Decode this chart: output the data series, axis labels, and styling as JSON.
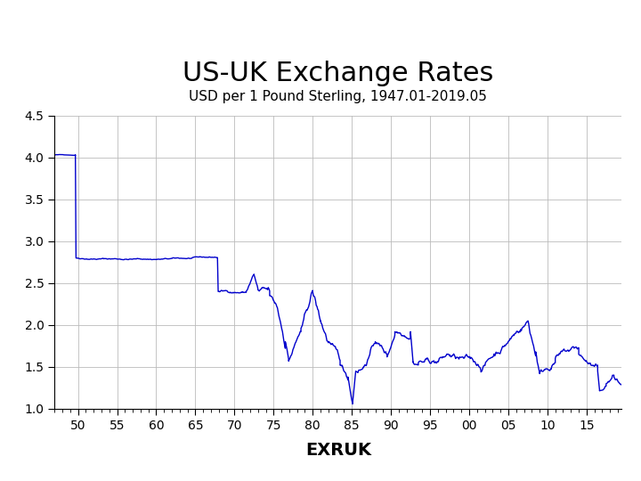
{
  "title": "US-UK Exchange Rates",
  "subtitle": "USD per 1 Pound Sterling, 1947.01-2019.05",
  "xlabel": "EXRUK",
  "ylabel": "",
  "line_color": "#0000CC",
  "background_color": "#ffffff",
  "grid_color": "#bbbbbb",
  "ylim": [
    1.0,
    4.5
  ],
  "xlim": [
    1947.0,
    2019.5
  ],
  "yticks": [
    1.0,
    1.5,
    2.0,
    2.5,
    3.0,
    3.5,
    4.0,
    4.5
  ],
  "xticks": [
    1950,
    1955,
    1960,
    1965,
    1970,
    1975,
    1980,
    1985,
    1990,
    1995,
    2000,
    2005,
    2010,
    2015
  ],
  "xtick_labels": [
    "50",
    "55",
    "60",
    "65",
    "70",
    "75",
    "80",
    "85",
    "90",
    "95",
    "00",
    "05",
    "10",
    "15"
  ],
  "title_fontsize": 22,
  "subtitle_fontsize": 11,
  "xlabel_fontsize": 14,
  "line_width": 1.0
}
